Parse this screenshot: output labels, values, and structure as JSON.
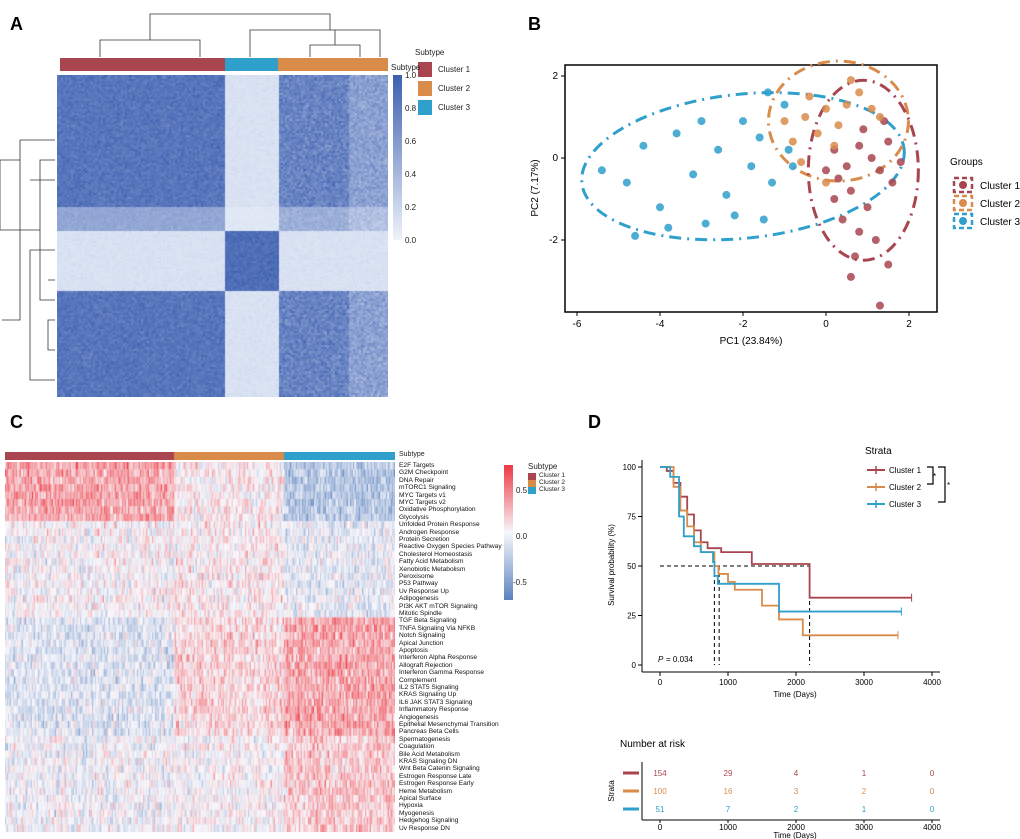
{
  "panels": {
    "a": "A",
    "b": "B",
    "c": "C",
    "d": "D"
  },
  "colors": {
    "cluster1": "#a8454f",
    "cluster2": "#d98b4a",
    "cluster3": "#2f9fcb",
    "high": "#3d5fb0",
    "hot": "#ee3a43"
  },
  "chart_data": [
    {
      "type": "heatmap",
      "panel": "A",
      "annotation_title": "Subtype",
      "colorbar_ticks": [
        "1.0",
        "0.8",
        "0.6",
        "0.4",
        "0.2",
        "0.0"
      ],
      "legend_title": "Subtype",
      "legend": [
        "Cluster 1",
        "Cluster 2",
        "Cluster 3"
      ],
      "column_order": [
        "Cluster 1",
        "Cluster 3",
        "Cluster 2"
      ],
      "sizes": {
        "Cluster 1": 154,
        "Cluster 2": 100,
        "Cluster 3": 51
      }
    },
    {
      "type": "scatter",
      "panel": "B",
      "xlabel": "PC1 (23.84%)",
      "ylabel": "PC2 (7.17%)",
      "xticks": [
        "-6",
        "-4",
        "-2",
        "0",
        "2"
      ],
      "yticks": [
        "2",
        "0",
        "-2"
      ],
      "xlim": [
        -6.3,
        2.7
      ],
      "ylim": [
        -4.0,
        2.2
      ],
      "legend_title": "Groups",
      "legend": [
        "Cluster 1",
        "Cluster 2",
        "Cluster 3"
      ],
      "series": [
        {
          "name": "Cluster 1",
          "points": [
            [
              0.2,
              0.2
            ],
            [
              0.5,
              -0.2
            ],
            [
              0.8,
              0.3
            ],
            [
              1.1,
              0.0
            ],
            [
              1.3,
              -0.3
            ],
            [
              0.6,
              -0.8
            ],
            [
              1.0,
              -1.2
            ],
            [
              0.3,
              -0.5
            ],
            [
              1.5,
              0.4
            ],
            [
              0.9,
              0.7
            ],
            [
              1.6,
              -0.6
            ],
            [
              0.4,
              -1.5
            ],
            [
              1.2,
              -2.0
            ],
            [
              0.7,
              -2.4
            ],
            [
              1.5,
              -2.6
            ],
            [
              0.6,
              -2.9
            ],
            [
              1.3,
              -3.6
            ],
            [
              0.0,
              -0.3
            ],
            [
              1.8,
              -0.1
            ],
            [
              0.2,
              -1.0
            ],
            [
              1.4,
              0.9
            ],
            [
              0.8,
              -1.8
            ]
          ]
        },
        {
          "name": "Cluster 2",
          "points": [
            [
              -0.5,
              1.0
            ],
            [
              0.0,
              1.2
            ],
            [
              0.5,
              1.3
            ],
            [
              -0.2,
              0.6
            ],
            [
              0.3,
              0.8
            ],
            [
              -0.8,
              0.4
            ],
            [
              0.8,
              1.6
            ],
            [
              -0.4,
              1.5
            ],
            [
              0.2,
              0.3
            ],
            [
              -1.0,
              0.9
            ],
            [
              1.1,
              1.2
            ],
            [
              0.6,
              1.9
            ],
            [
              -0.6,
              -0.1
            ],
            [
              0.0,
              -0.6
            ],
            [
              1.3,
              1.0
            ]
          ]
        },
        {
          "name": "Cluster 3",
          "points": [
            [
              -5.4,
              -0.3
            ],
            [
              -4.8,
              -0.6
            ],
            [
              -4.4,
              0.3
            ],
            [
              -4.0,
              -1.2
            ],
            [
              -3.6,
              0.6
            ],
            [
              -3.2,
              -0.4
            ],
            [
              -2.9,
              -1.6
            ],
            [
              -2.6,
              0.2
            ],
            [
              -2.4,
              -0.9
            ],
            [
              -2.0,
              0.9
            ],
            [
              -1.8,
              -0.2
            ],
            [
              -1.6,
              0.5
            ],
            [
              -1.3,
              -0.6
            ],
            [
              -1.0,
              1.3
            ],
            [
              -0.8,
              -0.2
            ],
            [
              -4.6,
              -1.9
            ],
            [
              -3.8,
              -1.7
            ],
            [
              -2.2,
              -1.4
            ],
            [
              -1.5,
              -1.5
            ],
            [
              -3.0,
              0.9
            ],
            [
              -1.4,
              1.6
            ],
            [
              -0.9,
              0.2
            ]
          ]
        }
      ]
    },
    {
      "type": "heatmap",
      "panel": "C",
      "annotation_title": "Subtype",
      "legend_title": "Subtype",
      "legend": [
        "Cluster 1",
        "Cluster 2",
        "Cluster 3"
      ],
      "colorbar_ticks": [
        "0.5",
        "0.0",
        "-0.5"
      ],
      "rows": [
        "E2F Targets",
        "G2M Checkpoint",
        "DNA Repair",
        "mTORC1 Signaling",
        "MYC Targets v1",
        "MYC Targets v2",
        "Oxidative Phosphorylation",
        "Glycolysis",
        "Unfolded Protein Response",
        "Androgen Response",
        "Protein Secretion",
        "Reactive Oxygen Species Pathway",
        "Cholesterol Homeostasis",
        "Fatty Acid Metabolism",
        "Xenobiotic Metabolism",
        "Peroxisome",
        "P53 Pathway",
        "Uv Response Up",
        "Adipogenesis",
        "PI3K AKT mTOR Signaling",
        "Mitotic Spindle",
        "TGF Beta Signaling",
        "TNFA Signaling Via NFKB",
        "Notch Signaling",
        "Apical Junction",
        "Apoptosis",
        "Interferon Alpha Response",
        "Allograft Rejection",
        "Interferon Gamma Response",
        "Complement",
        "IL2 STAT5 Signaling",
        "KRAS Signaling Up",
        "IL6 JAK STAT3 Signaling",
        "Inflammatory Response",
        "Angiogenesis",
        "Epithelial Mesenchymal Transition",
        "Pancreas Beta Cells",
        "Spermatogenesis",
        "Coagulation",
        "Bile Acid Metabolism",
        "KRAS Signaling DN",
        "Wnt Beta Catenin Signaling",
        "Estrogen Response Late",
        "Estrogen Response Early",
        "Heme Metabolism",
        "Apical Surface",
        "Hypoxia",
        "Myogenesis",
        "Hedgehog Signaling",
        "Uv Response DN"
      ]
    },
    {
      "type": "line",
      "panel": "D",
      "ylabel": "Survival probability (%)",
      "xlabel": "Time (Days)",
      "xticks": [
        "0",
        "1000",
        "2000",
        "3000",
        "4000"
      ],
      "yticks": [
        "100",
        "75",
        "50",
        "25",
        "0"
      ],
      "xlim": [
        -200,
        4000
      ],
      "ylim": [
        0,
        100
      ],
      "legend_title": "Strata",
      "legend": [
        "Cluster 1",
        "Cluster 2",
        "Cluster 3"
      ],
      "significance": [
        "*",
        "*"
      ],
      "pvalue_label": "P",
      "pvalue": "= 0.034",
      "median_line": 50,
      "medians": {
        "Cluster 1": 2200,
        "Cluster 2": 870,
        "Cluster 3": 800
      },
      "series": [
        {
          "name": "Cluster 1",
          "steps": [
            [
              0,
              100
            ],
            [
              100,
              98
            ],
            [
              200,
              92
            ],
            [
              300,
              85
            ],
            [
              400,
              76
            ],
            [
              500,
              68
            ],
            [
              600,
              62
            ],
            [
              700,
              59
            ],
            [
              900,
              57
            ],
            [
              1350,
              51
            ],
            [
              2200,
              34
            ],
            [
              3700,
              34
            ]
          ]
        },
        {
          "name": "Cluster 2",
          "steps": [
            [
              0,
              100
            ],
            [
              200,
              90
            ],
            [
              300,
              78
            ],
            [
              400,
              70
            ],
            [
              500,
              62
            ],
            [
              600,
              57
            ],
            [
              800,
              50
            ],
            [
              860,
              46
            ],
            [
              1000,
              42
            ],
            [
              1100,
              38
            ],
            [
              1500,
              30
            ],
            [
              1750,
              23
            ],
            [
              2100,
              15
            ],
            [
              3500,
              15
            ]
          ]
        },
        {
          "name": "Cluster 3",
          "steps": [
            [
              0,
              100
            ],
            [
              150,
              95
            ],
            [
              280,
              75
            ],
            [
              350,
              65
            ],
            [
              500,
              60
            ],
            [
              600,
              57
            ],
            [
              780,
              52
            ],
            [
              800,
              45
            ],
            [
              850,
              41
            ],
            [
              1750,
              27
            ],
            [
              3550,
              27
            ]
          ]
        }
      ],
      "risk_table": {
        "title": "Number at risk",
        "ylabel": "Strata",
        "xlabel": "Time (Days)",
        "rows": [
          {
            "name": "Cluster 1",
            "values": [
              "154",
              "29",
              "4",
              "1",
              "0"
            ]
          },
          {
            "name": "Cluster 2",
            "values": [
              "100",
              "16",
              "3",
              "2",
              "0"
            ]
          },
          {
            "name": "Cluster 3",
            "values": [
              "51",
              "7",
              "2",
              "1",
              "0"
            ]
          }
        ]
      }
    }
  ]
}
